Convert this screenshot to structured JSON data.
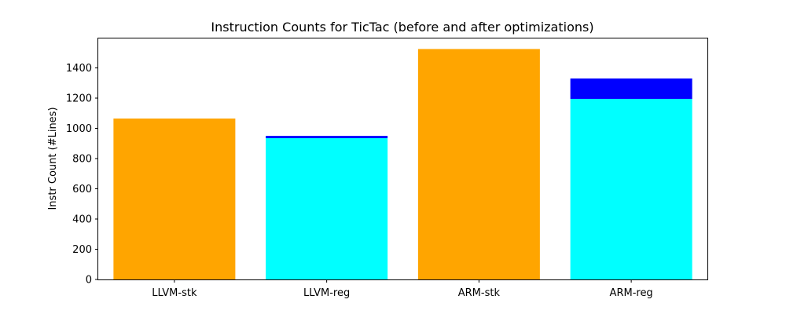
{
  "chart_data": {
    "type": "bar",
    "stacked": true,
    "title": "Instruction Counts for TicTac (before and after optimizations)",
    "xlabel": "",
    "ylabel": "Instr Count (#Lines)",
    "categories": [
      "LLVM-stk",
      "LLVM-reg",
      "ARM-stk",
      "ARM-reg"
    ],
    "ylim": [
      0,
      1600
    ],
    "yticks": [
      0,
      200,
      400,
      600,
      800,
      1000,
      1200,
      1400
    ],
    "bars": [
      {
        "category": "LLVM-stk",
        "segments": [
          {
            "value": 1065,
            "color": "#FFA500"
          }
        ]
      },
      {
        "category": "LLVM-reg",
        "segments": [
          {
            "value": 935,
            "color": "#00FFFF"
          },
          {
            "value": 15,
            "color": "#0000FF"
          }
        ]
      },
      {
        "category": "ARM-stk",
        "segments": [
          {
            "value": 1525,
            "color": "#FFA500"
          }
        ]
      },
      {
        "category": "ARM-reg",
        "segments": [
          {
            "value": 1195,
            "color": "#00FFFF"
          },
          {
            "value": 135,
            "color": "#0000FF"
          }
        ]
      }
    ],
    "grid": false,
    "legend": "none"
  }
}
